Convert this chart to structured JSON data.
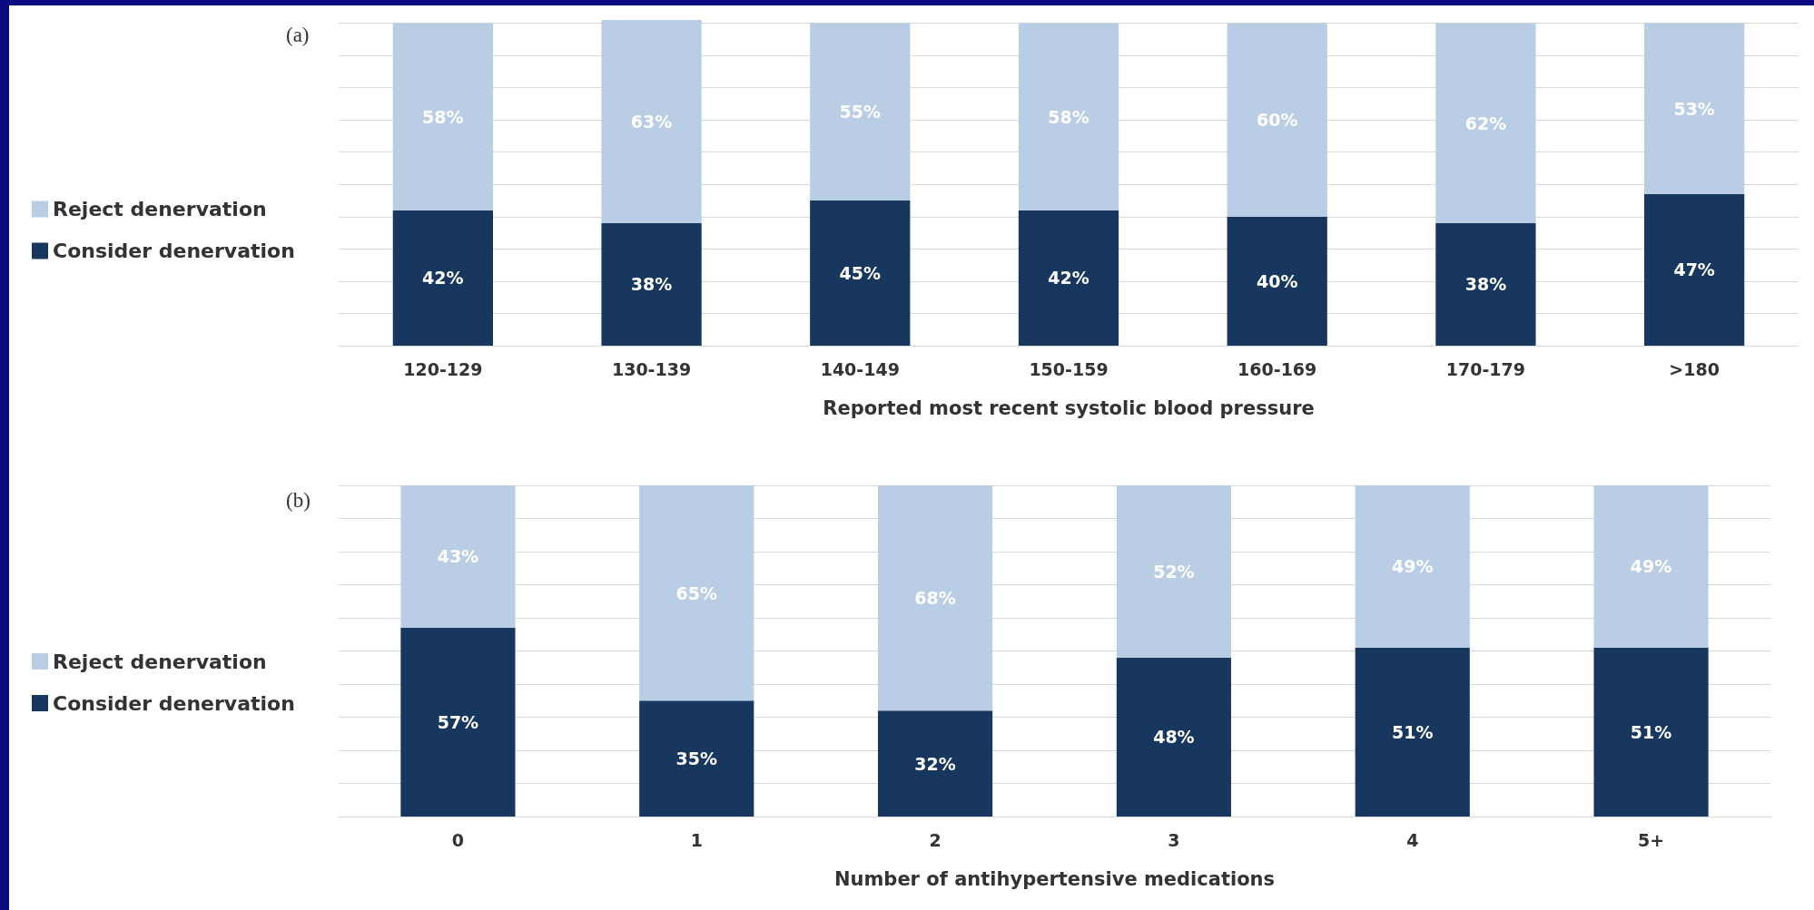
{
  "chart_data": [
    {
      "type": "bar",
      "title": "(a)",
      "xlabel": "Reported most recent systolic blood pressure",
      "categories": [
        "120-129",
        "130-139",
        "140-149",
        "150-159",
        "160-169",
        "170-179",
        ">180"
      ],
      "stacked": true,
      "ylim": [
        0,
        101
      ],
      "yticks": [
        {
          "value": 0,
          "label": null
        },
        {
          "value": 10,
          "label": null
        },
        {
          "value": 20,
          "label": null
        },
        {
          "value": 30,
          "label": null
        },
        {
          "value": 40,
          "label": null
        },
        {
          "value": 50,
          "label": null
        },
        {
          "value": 60,
          "label": null
        },
        {
          "value": 70,
          "label": null
        },
        {
          "value": 80,
          "label": null
        },
        {
          "value": 90,
          "label": null
        },
        {
          "value": 100,
          "label": null
        }
      ],
      "grid": "y",
      "tick_labels": "x",
      "legend": "left",
      "series": [
        {
          "name": "Consider denervation",
          "color": "#17375e",
          "values": [
            42,
            38,
            45,
            42,
            40,
            38,
            47
          ],
          "value_labels": [
            "42%",
            "38%",
            "45%",
            "42%",
            "40%",
            "38%",
            "47%"
          ]
        },
        {
          "name": "Reject denervation",
          "color": "#b9cde5",
          "values": [
            58,
            63,
            55,
            58,
            60,
            62,
            53
          ],
          "value_labels": [
            "58%",
            "63%",
            "55%",
            "58%",
            "60%",
            "62%",
            "53%"
          ]
        }
      ]
    },
    {
      "type": "bar",
      "title": "(b)",
      "xlabel": "Number of antihypertensive medications",
      "categories": [
        "0",
        "1",
        "2",
        "3",
        "4",
        "5+"
      ],
      "stacked": true,
      "ylim": [
        0,
        100
      ],
      "yticks": [
        {
          "value": 0,
          "label": null
        },
        {
          "value": 10,
          "label": null
        },
        {
          "value": 20,
          "label": null
        },
        {
          "value": 30,
          "label": null
        },
        {
          "value": 40,
          "label": null
        },
        {
          "value": 50,
          "label": null
        },
        {
          "value": 60,
          "label": null
        },
        {
          "value": 70,
          "label": null
        },
        {
          "value": 80,
          "label": null
        },
        {
          "value": 90,
          "label": null
        },
        {
          "value": 100,
          "label": null
        }
      ],
      "grid": "y",
      "tick_labels": "x",
      "legend": "left",
      "series": [
        {
          "name": "Consider denervation",
          "color": "#17375e",
          "values": [
            57,
            35,
            32,
            48,
            51,
            51
          ],
          "value_labels": [
            "57%",
            "35%",
            "32%",
            "48%",
            "51%",
            "51%"
          ]
        },
        {
          "name": "Reject denervation",
          "color": "#b9cde5",
          "values": [
            43,
            65,
            68,
            52,
            49,
            49
          ],
          "value_labels": [
            "43%",
            "65%",
            "68%",
            "52%",
            "49%",
            "49%"
          ]
        }
      ]
    }
  ]
}
